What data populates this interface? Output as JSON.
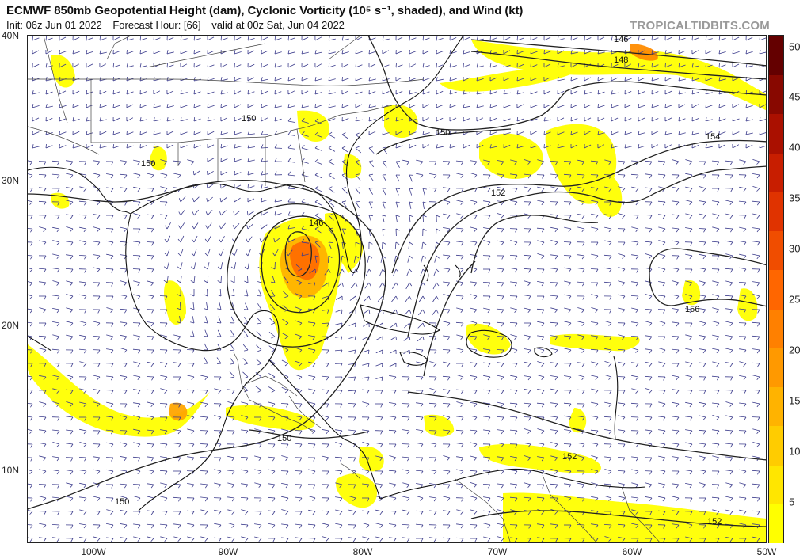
{
  "header": {
    "title": "ECMWF 850mb Geopotential Height (dam), Cyclonic Vorticity (10⁵ s⁻¹, shaded), and Wind (kt)",
    "init": "Init: 06z Jun 01 2022",
    "forecast_hour": "Forecast Hour: [66]",
    "valid": "valid at 00z Sat, Jun 04 2022"
  },
  "watermark": "TROPICALTIDBITS.COM",
  "map": {
    "lat_labels": [
      "40N",
      "30N",
      "20N",
      "10N"
    ],
    "lon_labels": [
      "100W",
      "90W",
      "80W",
      "70W",
      "60W",
      "50W"
    ],
    "contour_labels": [
      "146",
      "148",
      "150",
      "152",
      "154",
      "156"
    ],
    "barb_color": "#3c3c8c",
    "coast_color": "#111111",
    "border_color": "#555555",
    "contour_color": "#222222"
  },
  "colorbar": {
    "ticks": [
      "50",
      "45",
      "40",
      "35",
      "30",
      "25",
      "20",
      "15",
      "10",
      "5"
    ],
    "colors": [
      "#ffff00",
      "#ffe600",
      "#ffcc00",
      "#ffb300",
      "#ff9900",
      "#ff8000",
      "#ff6600",
      "#f04d00",
      "#e03300",
      "#c81e00",
      "#aa1000",
      "#880800",
      "#640000"
    ]
  }
}
